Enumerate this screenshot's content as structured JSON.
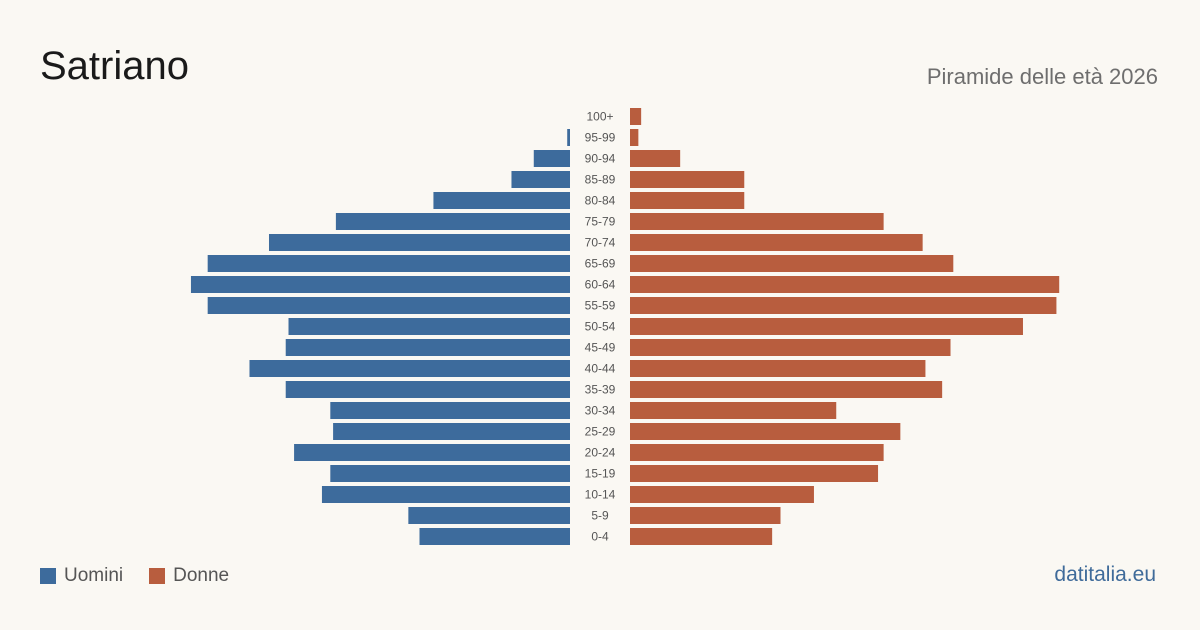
{
  "header": {
    "title": "Satriano",
    "subtitle": "Piramide delle età 2026"
  },
  "legend": {
    "men_label": "Uomini",
    "women_label": "Donne"
  },
  "footer": {
    "source": "datitalia.eu"
  },
  "colors": {
    "men": "#3d6b9c",
    "women": "#b85d3e",
    "background": "#faf8f3",
    "age_label": "#555555"
  },
  "chart_data": {
    "type": "bar",
    "orientation": "horizontal-population-pyramid",
    "categories": [
      "100+",
      "95-99",
      "90-94",
      "85-89",
      "80-84",
      "75-79",
      "70-74",
      "65-69",
      "60-64",
      "55-59",
      "50-54",
      "45-49",
      "40-44",
      "35-39",
      "30-34",
      "25-29",
      "20-24",
      "15-19",
      "10-14",
      "5-9",
      "0-4"
    ],
    "series": [
      {
        "name": "Uomini",
        "values": [
          0,
          1,
          13,
          21,
          49,
          84,
          108,
          130,
          136,
          130,
          101,
          102,
          115,
          102,
          86,
          85,
          99,
          86,
          89,
          58,
          54
        ]
      },
      {
        "name": "Donne",
        "values": [
          4,
          3,
          18,
          41,
          41,
          91,
          105,
          116,
          154,
          153,
          141,
          115,
          106,
          112,
          74,
          97,
          91,
          89,
          66,
          54,
          51
        ]
      }
    ],
    "xlim": [
      0,
      155
    ],
    "legend_position": "bottom-left",
    "grid": false
  }
}
